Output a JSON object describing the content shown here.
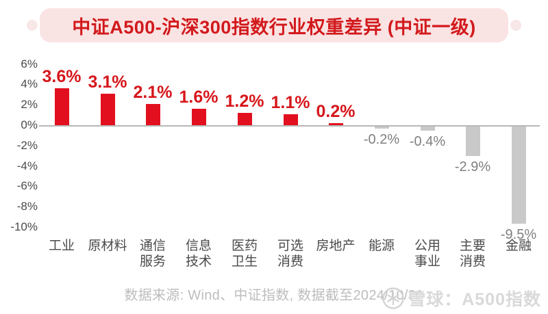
{
  "banner": {
    "title": "中证A500-沪深300指数行业权重差异 (中证一级)"
  },
  "chart_data": {
    "type": "bar",
    "title": "中证A500-沪深300指数行业权重差异 (中证一级)",
    "categories": [
      "工业",
      "原材料",
      "通信服务",
      "信息技术",
      "医药卫生",
      "可选消费",
      "房地产",
      "能源",
      "公用事业",
      "主要消费",
      "金融"
    ],
    "category_lines": [
      [
        "工业"
      ],
      [
        "原材料"
      ],
      [
        "通信",
        "服务"
      ],
      [
        "信息",
        "技术"
      ],
      [
        "医药",
        "卫生"
      ],
      [
        "可选",
        "消费"
      ],
      [
        "房地产"
      ],
      [
        "能源"
      ],
      [
        "公用",
        "事业"
      ],
      [
        "主要",
        "消费"
      ],
      [
        "金融"
      ]
    ],
    "values": [
      3.6,
      3.1,
      2.1,
      1.6,
      1.2,
      1.1,
      0.2,
      -0.2,
      -0.4,
      -2.9,
      -9.5
    ],
    "value_labels": [
      "3.6%",
      "3.1%",
      "2.1%",
      "1.6%",
      "1.2%",
      "1.1%",
      "0.2%",
      "-0.2%",
      "-0.4%",
      "-2.9%",
      "-9.5%"
    ],
    "y_ticks": [
      6,
      4,
      2,
      0,
      -2,
      -4,
      -6,
      -8,
      -10
    ],
    "y_tick_labels": [
      "6%",
      "4%",
      "2%",
      "0%",
      "-2%",
      "-4%",
      "-6%",
      "-8%",
      "-10%"
    ],
    "ylim": [
      -10,
      6
    ],
    "xlabel": "",
    "ylabel": "",
    "grid": false,
    "legend": null
  },
  "footer": {
    "source_text": "数据来源: Wind、中证指数, 数据截至2024/10/31"
  },
  "watermark": {
    "logo": "snowball-icon",
    "text": "雪球：A500指数"
  },
  "colors": {
    "positive_bar": "#E2101E",
    "negative_bar": "#C9C9C9",
    "positive_label": "#D6161B",
    "negative_label": "#7E7E7E",
    "title_text": "#D2191C",
    "banner_bg": "#FAE3E3",
    "notch_bg": "#F8E7E7",
    "axis_line": "#B7B7B7",
    "axis_text": "#4A4A4A",
    "footer_text": "#BDBDBD",
    "watermark_text": "#D9D9D9"
  }
}
